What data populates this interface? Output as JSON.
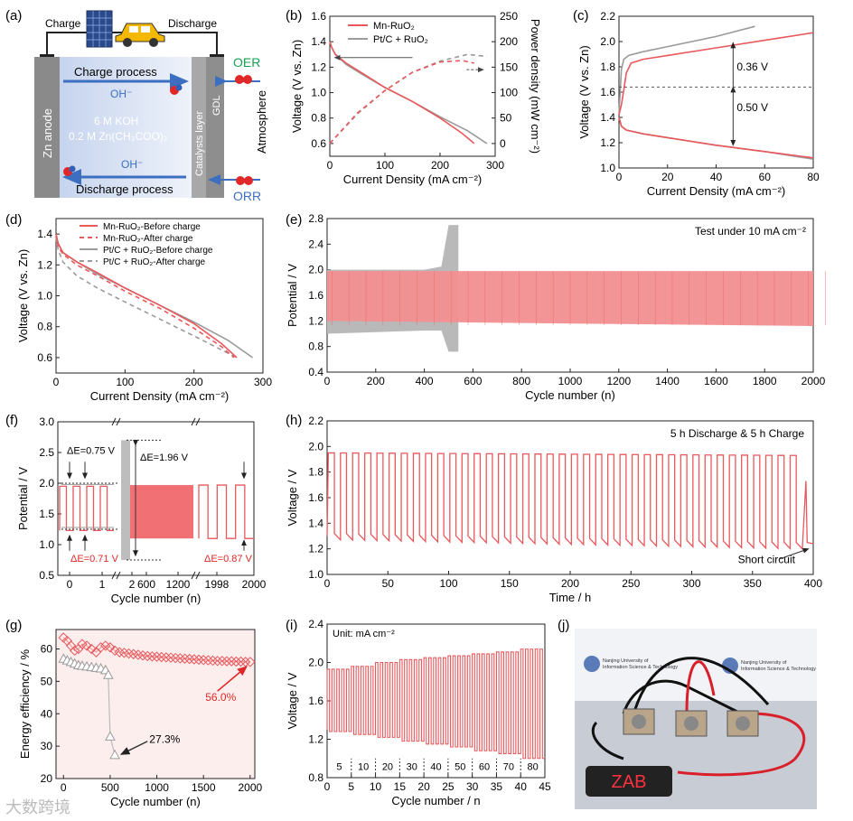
{
  "colors": {
    "red": "#e8585c",
    "gray": "#9a9a9a",
    "darkgray": "#555555",
    "redtext": "#e02828",
    "blue": "#3d6fc0",
    "green": "#18a050"
  },
  "watermark": "大数跨境",
  "panels": {
    "a": "(a)",
    "b": "(b)",
    "c": "(c)",
    "d": "(d)",
    "e": "(e)",
    "f": "(f)",
    "g": "(g)",
    "h": "(h)",
    "i": "(i)",
    "j": "(j)"
  },
  "schematic": {
    "charge": "Charge",
    "discharge": "Discharge",
    "charge_process": "Charge process",
    "discharge_process": "Discharge process",
    "oh": "OH⁻",
    "electrolyte1": "6 M KOH",
    "electrolyte2": "0.2 M Zn(CH₃COO)₂",
    "zn_anode": "Zn anode",
    "catalysts_layer": "Catalysts layer",
    "gdl": "GDL",
    "atmosphere": "Atmosphere",
    "oer": "OER",
    "orr": "ORR"
  },
  "photo": {
    "label1": "Nanjing University of",
    "label2": "Information Science & Technology",
    "display": "ZAB"
  },
  "chart_data": [
    {
      "id": "b",
      "type": "line",
      "xlabel": "Current Density (mA cm⁻²)",
      "ylabel": "Voltage (V vs. Zn)",
      "y2label": "Power density (mW cm⁻²)",
      "xlim": [
        0,
        300
      ],
      "ylim": [
        0.5,
        1.6
      ],
      "y2lim": [
        -25,
        250
      ],
      "xticks": [
        "0",
        "100",
        "200",
        "300"
      ],
      "yticks": [
        "0.6",
        "0.8",
        "1.0",
        "1.2",
        "1.4",
        "1.6"
      ],
      "y2ticks": [
        "0",
        "50",
        "100",
        "150",
        "200",
        "250"
      ],
      "legend": [
        "Mn-RuO₂",
        "Pt/C + RuO₂"
      ],
      "series": [
        {
          "name": "Mn-RuO₂",
          "kind": "voltage",
          "x": [
            0,
            3,
            10,
            30,
            60,
            100,
            150,
            200,
            240,
            262
          ],
          "y": [
            1.4,
            1.36,
            1.3,
            1.23,
            1.15,
            1.04,
            0.93,
            0.8,
            0.68,
            0.6
          ]
        },
        {
          "name": "Pt/C + RuO₂",
          "kind": "voltage",
          "x": [
            0,
            3,
            10,
            30,
            60,
            100,
            150,
            200,
            250,
            285
          ],
          "y": [
            1.4,
            1.36,
            1.3,
            1.22,
            1.14,
            1.04,
            0.93,
            0.81,
            0.7,
            0.6
          ]
        },
        {
          "name": "Mn-RuO₂",
          "kind": "power",
          "x": [
            0,
            50,
            100,
            150,
            200,
            240,
            262
          ],
          "y": [
            0,
            60,
            104,
            140,
            160,
            163,
            158
          ]
        },
        {
          "name": "Pt/C + RuO₂",
          "kind": "power",
          "x": [
            0,
            50,
            100,
            150,
            200,
            250,
            285
          ],
          "y": [
            0,
            58,
            104,
            140,
            162,
            175,
            171
          ]
        }
      ]
    },
    {
      "id": "c",
      "type": "line",
      "xlabel": "Current Density (mA cm⁻²)",
      "ylabel": "Voltage (V vs. Zn)",
      "xlim": [
        0,
        80
      ],
      "ylim": [
        1.0,
        2.2
      ],
      "xticks": [
        "0",
        "20",
        "40",
        "60",
        "80"
      ],
      "yticks": [
        "1.0",
        "1.2",
        "1.4",
        "1.6",
        "1.8",
        "2.0",
        "2.2"
      ],
      "annotations": [
        "0.36 V",
        "0.50 V"
      ],
      "series": [
        {
          "name": "Mn-RuO₂ charge",
          "x": [
            0,
            1,
            2,
            3,
            5,
            10,
            20,
            40,
            60,
            80
          ],
          "y": [
            1.42,
            1.5,
            1.62,
            1.75,
            1.83,
            1.86,
            1.89,
            1.95,
            2.01,
            2.07
          ]
        },
        {
          "name": "Pt/C + RuO₂ charge",
          "x": [
            0,
            0.5,
            1,
            2,
            4,
            10,
            20,
            40,
            56
          ],
          "y": [
            1.42,
            1.6,
            1.78,
            1.86,
            1.89,
            1.92,
            1.96,
            2.04,
            2.12
          ]
        },
        {
          "name": "Mn-RuO₂ discharge",
          "x": [
            0,
            1,
            3,
            10,
            20,
            40,
            60,
            80
          ],
          "y": [
            1.4,
            1.33,
            1.3,
            1.27,
            1.24,
            1.18,
            1.13,
            1.08
          ]
        },
        {
          "name": "Pt/C + RuO₂ discharge",
          "x": [
            0,
            1,
            3,
            10,
            20,
            40,
            60,
            80
          ],
          "y": [
            1.4,
            1.33,
            1.3,
            1.27,
            1.24,
            1.18,
            1.13,
            1.07
          ]
        }
      ]
    },
    {
      "id": "d",
      "type": "line",
      "xlabel": "Current Density (mA cm⁻²)",
      "ylabel": "Voltage (V vs. Zn)",
      "xlim": [
        0,
        300
      ],
      "ylim": [
        0.5,
        1.5
      ],
      "xticks": [
        "0",
        "100",
        "200",
        "300"
      ],
      "yticks": [
        "0.6",
        "0.8",
        "1.0",
        "1.2",
        "1.4"
      ],
      "legend": [
        "Mn-RuO₂-Before charge",
        "Mn-RuO₂-After charge",
        "Pt/C + RuO₂-Before charge",
        "Pt/C + RuO₂-After charge"
      ],
      "series": [
        {
          "name": "Mn-RuO₂-Before charge",
          "x": [
            0,
            3,
            10,
            30,
            60,
            100,
            150,
            200,
            240,
            262
          ],
          "y": [
            1.4,
            1.34,
            1.28,
            1.22,
            1.15,
            1.05,
            0.94,
            0.82,
            0.69,
            0.6
          ]
        },
        {
          "name": "Mn-RuO₂-After charge",
          "x": [
            0,
            3,
            10,
            30,
            60,
            100,
            150,
            200,
            240,
            258
          ],
          "y": [
            1.4,
            1.32,
            1.27,
            1.2,
            1.13,
            1.03,
            0.92,
            0.79,
            0.67,
            0.6
          ]
        },
        {
          "name": "Pt/C + RuO₂-Before charge",
          "x": [
            0,
            3,
            10,
            30,
            60,
            100,
            150,
            200,
            250,
            285
          ],
          "y": [
            1.4,
            1.34,
            1.28,
            1.22,
            1.14,
            1.05,
            0.94,
            0.83,
            0.71,
            0.6
          ]
        },
        {
          "name": "Pt/C + RuO₂-After charge",
          "x": [
            0,
            3,
            10,
            30,
            60,
            100,
            150,
            200,
            240,
            262
          ],
          "y": [
            1.38,
            1.3,
            1.22,
            1.13,
            1.05,
            0.96,
            0.85,
            0.74,
            0.65,
            0.6
          ]
        }
      ]
    },
    {
      "id": "e",
      "type": "area",
      "xlabel": "Cycle number (n)",
      "ylabel": "Potential / V",
      "xlim": [
        0,
        2000
      ],
      "ylim": [
        0.4,
        2.8
      ],
      "xticks": [
        "0",
        "200",
        "400",
        "600",
        "800",
        "1000",
        "1200",
        "1400",
        "1600",
        "1800",
        "2000"
      ],
      "yticks": [
        "0.4",
        "0.8",
        "1.2",
        "1.6",
        "2.0",
        "2.4",
        "2.8"
      ],
      "annotation": "Test under 10 mA cm⁻²",
      "series": [
        {
          "name": "Mn-RuO₂",
          "x": [
            0,
            2000
          ],
          "upper": [
            1.98,
            1.98
          ],
          "lower": [
            1.2,
            1.12
          ]
        },
        {
          "name": "Pt/C + RuO₂",
          "x": [
            0,
            400,
            470,
            500,
            540
          ],
          "upper": [
            2.0,
            2.0,
            2.05,
            2.7,
            2.7
          ],
          "lower": [
            1.0,
            1.05,
            1.05,
            0.72,
            0.72
          ]
        }
      ]
    },
    {
      "id": "f",
      "type": "line",
      "xlabel": "Cycle number (n)",
      "ylabel": "Potential / V",
      "ylim": [
        0.5,
        3.0
      ],
      "xticks": [
        "0",
        "1",
        "2",
        "600",
        "1200",
        "1998",
        "2000"
      ],
      "yticks": [
        "0.5",
        "1.0",
        "1.5",
        "2.0",
        "2.5",
        "3.0"
      ],
      "annotations": [
        "ΔE=0.75 V",
        "ΔE=0.71 V",
        "ΔE=1.96 V",
        "ΔE=0.87 V"
      ]
    },
    {
      "id": "g",
      "type": "scatter",
      "xlabel": "Cycle number (n)",
      "ylabel": "Energy efficiency / %",
      "xlim": [
        -80,
        2050
      ],
      "ylim": [
        20,
        66
      ],
      "xticks": [
        "0",
        "500",
        "1000",
        "1500",
        "2000"
      ],
      "yticks": [
        "20",
        "30",
        "40",
        "50",
        "60"
      ],
      "annotations": [
        "56.0%",
        "27.3%"
      ],
      "series": [
        {
          "name": "Mn-RuO₂",
          "x": [
            0,
            40,
            80,
            120,
            160,
            200,
            250,
            300,
            350,
            400,
            450,
            500,
            550,
            600,
            650,
            700,
            750,
            800,
            850,
            900,
            950,
            1000,
            1050,
            1100,
            1150,
            1200,
            1250,
            1300,
            1350,
            1400,
            1450,
            1500,
            1550,
            1600,
            1650,
            1700,
            1750,
            1800,
            1850,
            1900,
            1950,
            2000
          ],
          "y": [
            63.5,
            62.5,
            61,
            59.5,
            60,
            61.5,
            61,
            60,
            59,
            60.5,
            61,
            60.5,
            59.5,
            59,
            58.8,
            58.6,
            58.4,
            58.2,
            58,
            57.8,
            57.7,
            57.6,
            57.5,
            57.4,
            57.3,
            57.2,
            57.1,
            57,
            56.9,
            56.8,
            56.7,
            56.6,
            56.5,
            56.4,
            56.3,
            56.3,
            56.2,
            56.2,
            56.1,
            56.1,
            56.0,
            56.0
          ]
        },
        {
          "name": "Pt/C + RuO₂",
          "x": [
            0,
            40,
            80,
            120,
            160,
            200,
            250,
            300,
            350,
            400,
            450,
            480,
            500,
            550
          ],
          "y": [
            57,
            56.5,
            56,
            55.5,
            55,
            54.8,
            54.6,
            54.4,
            54.2,
            54,
            53.5,
            52,
            33,
            27.3
          ]
        }
      ]
    },
    {
      "id": "h",
      "type": "line",
      "xlabel": "Time / h",
      "ylabel": "Voltage / V",
      "xlim": [
        0,
        400
      ],
      "ylim": [
        1.0,
        2.2
      ],
      "xticks": [
        "0",
        "50",
        "100",
        "150",
        "200",
        "250",
        "300",
        "350",
        "400"
      ],
      "yticks": [
        "1.0",
        "1.2",
        "1.4",
        "1.6",
        "1.8",
        "2.0",
        "2.2"
      ],
      "annotations": [
        "5 h Discharge & 5 h Charge",
        "Short circuit"
      ],
      "series": [
        {
          "name": "Mn-RuO₂",
          "period": 10,
          "charge": [
            1.95,
            1.93
          ],
          "discharge": [
            1.27,
            1.2
          ]
        }
      ]
    },
    {
      "id": "i",
      "type": "line",
      "xlabel": "Cycle number / n",
      "ylabel": "Voltage / V",
      "xlim": [
        0,
        45
      ],
      "ylim": [
        0.8,
        2.4
      ],
      "xticks": [
        "0",
        "5",
        "10",
        "15",
        "20",
        "25",
        "30",
        "35",
        "40",
        "45"
      ],
      "yticks": [
        "0.8",
        "1.2",
        "1.6",
        "2.0",
        "2.4"
      ],
      "unit_label": "Unit: mA cm⁻²",
      "rate_labels": [
        "5",
        "10",
        "20",
        "30",
        "40",
        "50",
        "60",
        "70",
        "80"
      ],
      "segments": [
        {
          "rate": 5,
          "charge": 1.93,
          "discharge": 1.28
        },
        {
          "rate": 10,
          "charge": 1.96,
          "discharge": 1.25
        },
        {
          "rate": 20,
          "charge": 2.0,
          "discharge": 1.22
        },
        {
          "rate": 30,
          "charge": 2.03,
          "discharge": 1.18
        },
        {
          "rate": 40,
          "charge": 2.05,
          "discharge": 1.15
        },
        {
          "rate": 50,
          "charge": 2.07,
          "discharge": 1.12
        },
        {
          "rate": 60,
          "charge": 2.09,
          "discharge": 1.08
        },
        {
          "rate": 70,
          "charge": 2.11,
          "discharge": 1.05
        },
        {
          "rate": 80,
          "charge": 2.14,
          "discharge": 1.0
        }
      ]
    }
  ]
}
